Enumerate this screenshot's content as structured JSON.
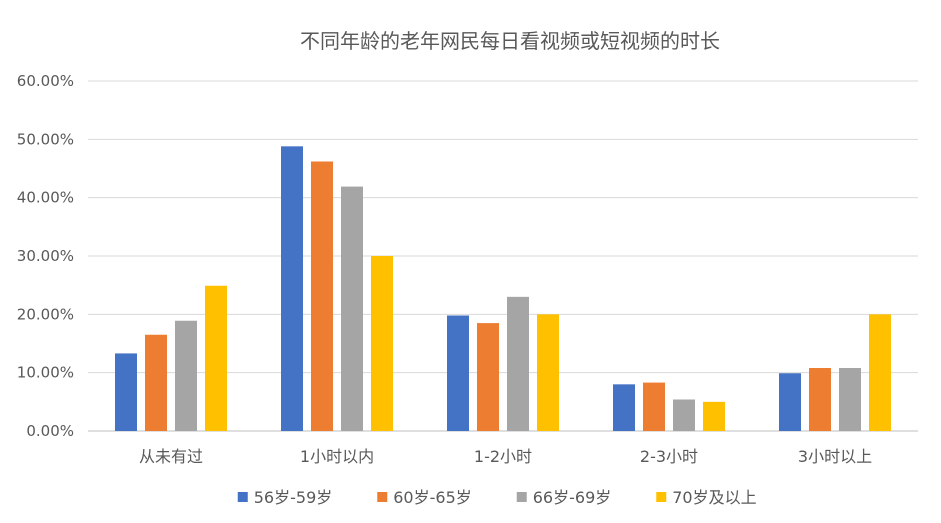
{
  "chart_data": {
    "type": "bar",
    "title": "不同年龄的老年网民每日看视频或短视频的时长",
    "categories": [
      "从未有过",
      "1小时以内",
      "1-2小时",
      "2-3小时",
      "3小时以上"
    ],
    "series": [
      {
        "name": "56岁-59岁",
        "color": "#4472c4",
        "values": [
          13.3,
          48.8,
          19.8,
          8.0,
          9.9
        ]
      },
      {
        "name": "60岁-65岁",
        "color": "#ed7d31",
        "values": [
          16.5,
          46.2,
          18.5,
          8.3,
          10.8
        ]
      },
      {
        "name": "66岁-69岁",
        "color": "#a5a5a5",
        "values": [
          18.9,
          41.9,
          23.0,
          5.4,
          10.8
        ]
      },
      {
        "name": "70岁及以上",
        "color": "#ffc000",
        "values": [
          24.9,
          30.0,
          20.0,
          5.0,
          20.0
        ]
      }
    ],
    "y_ticks": [
      "0.00%",
      "10.00%",
      "20.00%",
      "30.00%",
      "40.00%",
      "50.00%",
      "60.00%"
    ],
    "ylim": [
      0,
      60
    ],
    "legend_position": "bottom",
    "grid": true
  }
}
